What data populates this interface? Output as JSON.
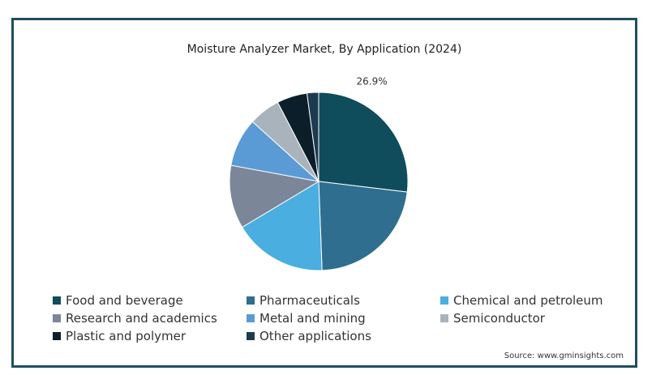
{
  "chart_data": {
    "type": "pie",
    "title": "Moisture Analyzer Market, By Application (2024)",
    "slices": [
      {
        "name": "Food and beverage",
        "value": 26.9,
        "label": "26.9%",
        "color": "#0f4c5c"
      },
      {
        "name": "Pharmaceuticals",
        "value": 22.5,
        "label": "",
        "color": "#2f6e8e"
      },
      {
        "name": "Chemical and petroleum",
        "value": 17.0,
        "label": "",
        "color": "#4aaee0"
      },
      {
        "name": "Research and academics",
        "value": 11.5,
        "label": "",
        "color": "#7b8798"
      },
      {
        "name": "Metal and mining",
        "value": 8.8,
        "label": "",
        "color": "#5b9bd5"
      },
      {
        "name": "Semiconductor",
        "value": 5.7,
        "label": "",
        "color": "#a9b3bc"
      },
      {
        "name": "Plastic and polymer",
        "value": 5.5,
        "label": "",
        "color": "#0b1e2a"
      },
      {
        "name": "Other applications",
        "value": 2.1,
        "label": "",
        "color": "#1d3a50"
      }
    ],
    "legend_position": "bottom",
    "start": "top, clockwise"
  },
  "source": "Source: www.gminsights.com"
}
